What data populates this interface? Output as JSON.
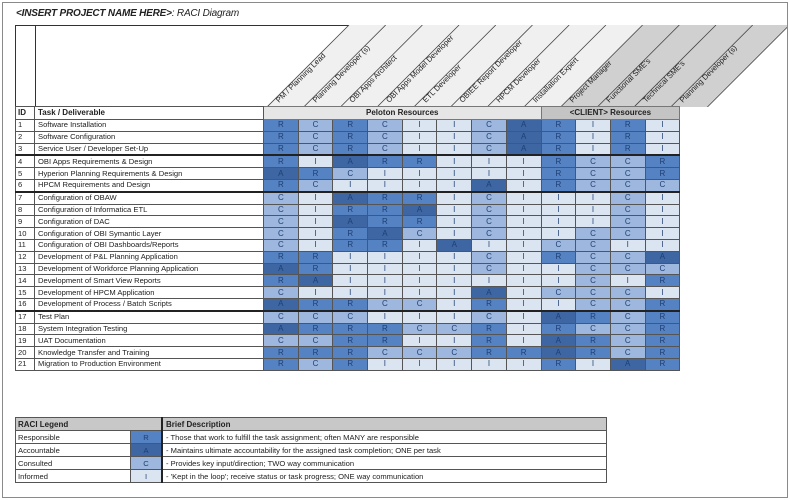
{
  "title": {
    "project": "<INSERT PROJECT NAME HERE>",
    "suffix": ": RACI Diagram"
  },
  "table": {
    "id_header": "ID",
    "task_header": "Task / Deliverable",
    "groups": [
      {
        "label": "Peloton Resources",
        "span": 8
      },
      {
        "label": "<CLIENT> Resources",
        "span": 4
      }
    ],
    "roles": [
      "PM / Planning Lead",
      "Planning Developer (s)",
      "OBI Apps Architect",
      "OBI Apps Model Developer",
      "ETL Developer",
      "OBIEE Report Developer",
      "HPCM Developer",
      "Installation Expert",
      "Project Manager",
      "Functional SME's",
      "Technical SME's",
      "Planning Developer (s)"
    ],
    "rows": [
      {
        "id": "1",
        "task": "Software Installation",
        "values": [
          "R",
          "C",
          "R",
          "C",
          "I",
          "I",
          "C",
          "A",
          "R",
          "I",
          "R",
          "I"
        ]
      },
      {
        "id": "2",
        "task": "Software Configuration",
        "values": [
          "R",
          "C",
          "R",
          "C",
          "I",
          "I",
          "C",
          "A",
          "R",
          "I",
          "R",
          "I"
        ]
      },
      {
        "id": "3",
        "task": "Service User / Developer Set-Up",
        "values": [
          "R",
          "C",
          "R",
          "C",
          "I",
          "I",
          "C",
          "A",
          "R",
          "I",
          "R",
          "I"
        ]
      },
      {
        "id": "4",
        "task": "OBI Apps Requirements & Design",
        "values": [
          "R",
          "I",
          "A",
          "R",
          "R",
          "I",
          "I",
          "I",
          "R",
          "C",
          "C",
          "R"
        ]
      },
      {
        "id": "5",
        "task": "Hyperion Planning Requirements & Design",
        "values": [
          "A",
          "R",
          "C",
          "I",
          "I",
          "I",
          "I",
          "I",
          "R",
          "C",
          "C",
          "R"
        ]
      },
      {
        "id": "6",
        "task": "HPCM Requirements and Design",
        "values": [
          "R",
          "C",
          "I",
          "I",
          "I",
          "I",
          "A",
          "I",
          "R",
          "C",
          "C",
          "C"
        ]
      },
      {
        "id": "7",
        "task": "Configuration of OBAW",
        "values": [
          "C",
          "I",
          "A",
          "R",
          "R",
          "I",
          "C",
          "I",
          "I",
          "I",
          "C",
          "I"
        ]
      },
      {
        "id": "8",
        "task": "Configuration of Informatica ETL",
        "values": [
          "C",
          "I",
          "R",
          "R",
          "A",
          "I",
          "C",
          "I",
          "I",
          "I",
          "C",
          "I"
        ]
      },
      {
        "id": "9",
        "task": "Configuration of DAC",
        "values": [
          "C",
          "I",
          "A",
          "R",
          "R",
          "I",
          "C",
          "I",
          "I",
          "I",
          "C",
          "I"
        ]
      },
      {
        "id": "10",
        "task": "Configuration of OBI Symantic Layer",
        "values": [
          "C",
          "I",
          "R",
          "A",
          "C",
          "I",
          "C",
          "I",
          "I",
          "C",
          "C",
          "I"
        ]
      },
      {
        "id": "11",
        "task": "Configuration of OBI Dashboards/Reports",
        "values": [
          "C",
          "I",
          "R",
          "R",
          "I",
          "A",
          "I",
          "I",
          "C",
          "C",
          "I",
          "I"
        ]
      },
      {
        "id": "12",
        "task": "Development of P&L Planning Application",
        "values": [
          "R",
          "R",
          "I",
          "I",
          "I",
          "I",
          "C",
          "I",
          "R",
          "C",
          "C",
          "A"
        ]
      },
      {
        "id": "13",
        "task": "Development of Workforce Planning Application",
        "values": [
          "A",
          "R",
          "I",
          "I",
          "I",
          "I",
          "C",
          "I",
          "I",
          "C",
          "C",
          "C"
        ]
      },
      {
        "id": "14",
        "task": "Development of Smart View Reports",
        "values": [
          "R",
          "A",
          "I",
          "I",
          "I",
          "I",
          "I",
          "I",
          "I",
          "C",
          "I",
          "R"
        ]
      },
      {
        "id": "15",
        "task": "Development of HPCM Application",
        "values": [
          "C",
          "I",
          "I",
          "I",
          "I",
          "I",
          "A",
          "I",
          "C",
          "C",
          "C",
          "I"
        ]
      },
      {
        "id": "16",
        "task": "Development of Process / Batch Scripts",
        "values": [
          "A",
          "R",
          "R",
          "C",
          "C",
          "I",
          "R",
          "I",
          "I",
          "C",
          "C",
          "R"
        ]
      },
      {
        "id": "17",
        "task": "Test Plan",
        "values": [
          "C",
          "C",
          "C",
          "I",
          "I",
          "I",
          "C",
          "I",
          "A",
          "R",
          "C",
          "R"
        ]
      },
      {
        "id": "18",
        "task": "System Integration Testing",
        "values": [
          "A",
          "R",
          "R",
          "R",
          "C",
          "C",
          "R",
          "I",
          "R",
          "C",
          "C",
          "R"
        ]
      },
      {
        "id": "19",
        "task": "UAT Documentation",
        "values": [
          "C",
          "C",
          "R",
          "R",
          "I",
          "I",
          "R",
          "I",
          "A",
          "R",
          "C",
          "R"
        ]
      },
      {
        "id": "20",
        "task": "Knowledge Transfer and Training",
        "values": [
          "R",
          "R",
          "R",
          "C",
          "C",
          "C",
          "R",
          "R",
          "A",
          "R",
          "C",
          "R"
        ]
      },
      {
        "id": "21",
        "task": "Migration to Production Environment",
        "values": [
          "R",
          "C",
          "R",
          "I",
          "I",
          "I",
          "I",
          "I",
          "R",
          "I",
          "A",
          "R"
        ]
      }
    ]
  },
  "legend": {
    "header_name": "RACI Legend",
    "header_desc": "Brief Description",
    "items": [
      {
        "name": "Responsible",
        "code": "R",
        "desc": "- Those that work to fulfill the task assignment; often MANY are responsible"
      },
      {
        "name": "Accountable",
        "code": "A",
        "desc": "- Maintains ultimate accountability for the assigned task completion; ONE per task"
      },
      {
        "name": "Consulted",
        "code": "C",
        "desc": "- Provides key input/direction; TWO way communication"
      },
      {
        "name": "Informed",
        "code": "I",
        "desc": "- 'Kept in the loop'; receive status or task progress; ONE way communication"
      }
    ]
  },
  "colors": {
    "R": "#5582c2",
    "A": "#3d66a3",
    "C": "#9db7de",
    "I": "#dbe5f2",
    "peloton_header": "#e6e6e6",
    "client_header": "#c4c4c4",
    "cell_text": "#1f3f73"
  }
}
